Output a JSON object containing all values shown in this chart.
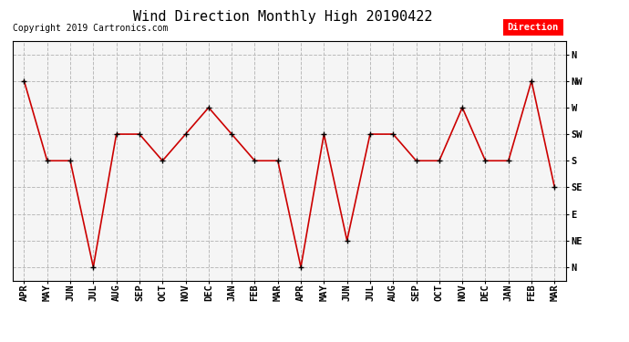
{
  "title": "Wind Direction Monthly High 20190422",
  "copyright": "Copyright 2019 Cartronics.com",
  "legend_label": "Direction",
  "legend_bg": "#ff0000",
  "legend_text_color": "#ffffff",
  "x_labels": [
    "APR",
    "MAY",
    "JUN",
    "JUL",
    "AUG",
    "SEP",
    "OCT",
    "NOV",
    "DEC",
    "JAN",
    "FEB",
    "MAR",
    "APR",
    "MAY",
    "JUN",
    "JUL",
    "AUG",
    "SEP",
    "OCT",
    "NOV",
    "DEC",
    "JAN",
    "FEB",
    "MAR"
  ],
  "y_labels": [
    "N",
    "NE",
    "E",
    "SE",
    "S",
    "SW",
    "W",
    "NW",
    "N"
  ],
  "y_values": [
    0,
    1,
    2,
    3,
    4,
    5,
    6,
    7,
    8
  ],
  "data_values": [
    7,
    4,
    4,
    0,
    5,
    5,
    4,
    5,
    6,
    5,
    4,
    4,
    0,
    5,
    1,
    5,
    5,
    4,
    4,
    6,
    4,
    4,
    7,
    3
  ],
  "line_color": "#cc0000",
  "marker_color": "#000000",
  "marker_size": 5,
  "line_width": 1.2,
  "grid_color": "#bbbbbb",
  "grid_style": "--",
  "plot_bg_color": "#f5f5f5",
  "fig_bg_color": "#ffffff",
  "title_fontsize": 11,
  "copyright_fontsize": 7,
  "tick_fontsize": 7.5,
  "figsize": [
    6.9,
    3.75
  ],
  "dpi": 100
}
